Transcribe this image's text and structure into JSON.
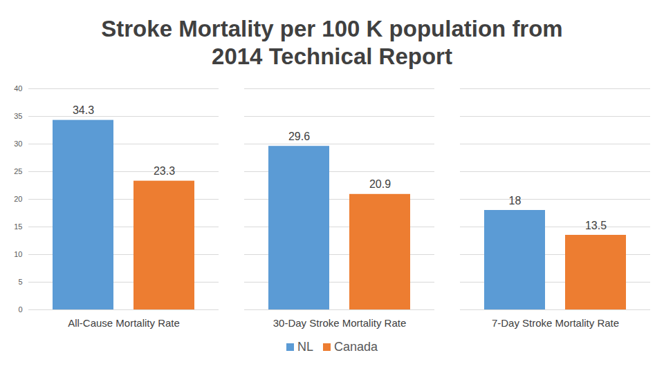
{
  "chart_data": {
    "type": "bar",
    "title": "Stroke Mortality per 100 K population from 2014 Technical Report",
    "categories": [
      "All-Cause Mortality Rate",
      "30-Day Stroke Mortality Rate",
      "7-Day Stroke Mortality Rate"
    ],
    "series": [
      {
        "name": "NL",
        "color": "#5b9bd5",
        "values": [
          34.3,
          29.6,
          18
        ]
      },
      {
        "name": "Canada",
        "color": "#ed7d31",
        "values": [
          23.3,
          20.9,
          13.5
        ]
      }
    ],
    "ylim": [
      0,
      40
    ],
    "yticks": [
      0,
      5,
      10,
      15,
      20,
      25,
      30,
      35,
      40
    ],
    "grid": true,
    "legend": "bottom",
    "data_labels": true
  }
}
